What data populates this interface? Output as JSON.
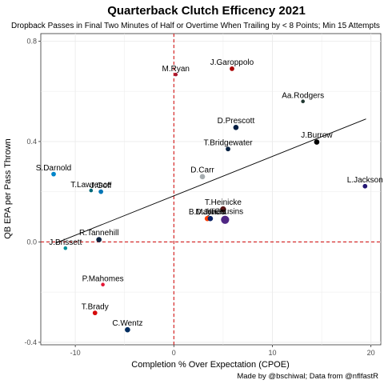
{
  "chart_data": {
    "type": "scatter",
    "title": "Quarterback Clutch Efficency 2021",
    "subtitle": "Dropback Passes in Final Two Minutes of Half or Overtime When Trailing by < 8 Points; Min 15 Attempts",
    "xlabel": "Completion % Over Expectation (CPOE)",
    "ylabel": "QB EPA per Pass Thrown",
    "caption": "Made by @bschiwal; Data from @nflfastR",
    "xlim": [
      -13.5,
      21
    ],
    "ylim": [
      -0.41,
      0.83
    ],
    "x_ticks": [
      -10,
      0,
      10,
      20
    ],
    "y_ticks": [
      -0.4,
      0.0,
      0.4,
      0.8
    ],
    "x_tick_labels": [
      "-10",
      "0",
      "10",
      "20"
    ],
    "y_tick_labels": [
      "-0.4",
      "0.0",
      "0.4",
      "0.8"
    ],
    "grid": true,
    "reference_lines": {
      "x": 0,
      "y": 0,
      "color": "#d00000",
      "style": "dashed"
    },
    "trend_line": {
      "x": [
        -12.0,
        19.5
      ],
      "y": [
        -0.005,
        0.49
      ]
    },
    "points": [
      {
        "label": "M.Ryan",
        "x": 0.2,
        "y": 0.667,
        "size": 1.0,
        "color": "#a71930"
      },
      {
        "label": "J.Garoppolo",
        "x": 5.9,
        "y": 0.69,
        "size": 2.0,
        "color": "#aa0000"
      },
      {
        "label": "Aa.Rodgers",
        "x": 13.1,
        "y": 0.56,
        "size": 1.0,
        "color": "#203731"
      },
      {
        "label": "D.Prescott",
        "x": 6.3,
        "y": 0.456,
        "size": 3.0,
        "color": "#041e42"
      },
      {
        "label": "J.Burrow",
        "x": 14.5,
        "y": 0.398,
        "size": 3.0,
        "color": "#000000"
      },
      {
        "label": "T.Bridgewater",
        "x": 5.5,
        "y": 0.37,
        "size": 2.0,
        "color": "#0a2343"
      },
      {
        "label": "S.Darnold",
        "x": -12.2,
        "y": 0.27,
        "size": 2.0,
        "color": "#0085ca"
      },
      {
        "label": "D.Carr",
        "x": 2.9,
        "y": 0.26,
        "size": 3.0,
        "color": "#a5acaf"
      },
      {
        "label": "L.Jackson",
        "x": 19.4,
        "y": 0.222,
        "size": 2.0,
        "color": "#241773"
      },
      {
        "label": "T.Lawrence",
        "x": -8.4,
        "y": 0.205,
        "size": 1.0,
        "color": "#006778"
      },
      {
        "label": "J.Goff",
        "x": -7.4,
        "y": 0.2,
        "size": 2.0,
        "color": "#0076b6"
      },
      {
        "label": "T.Heinicke",
        "x": 5.0,
        "y": 0.13,
        "size": 4.0,
        "color": "#5a1414"
      },
      {
        "label": "B.Mayfield",
        "x": 3.4,
        "y": 0.093,
        "size": 3.0,
        "color": "#ff3c00"
      },
      {
        "label": "D.Jones",
        "x": 3.7,
        "y": 0.093,
        "size": 3.0,
        "color": "#0b2265"
      },
      {
        "label": "K.Cousins",
        "x": 5.2,
        "y": 0.088,
        "size": 9.0,
        "color": "#4f2683"
      },
      {
        "label": "R.Tannehill",
        "x": -7.6,
        "y": 0.009,
        "size": 3.0,
        "color": "#0c2340"
      },
      {
        "label": "J.Brissett",
        "x": -11.0,
        "y": -0.025,
        "size": 1.0,
        "color": "#008e97"
      },
      {
        "label": "P.Mahomes",
        "x": -7.2,
        "y": -0.17,
        "size": 1.0,
        "color": "#e31837"
      },
      {
        "label": "T.Brady",
        "x": -8.0,
        "y": -0.283,
        "size": 2.0,
        "color": "#d50a0a"
      },
      {
        "label": "C.Wentz",
        "x": -4.7,
        "y": -0.35,
        "size": 3.0,
        "color": "#002c5f"
      }
    ]
  }
}
